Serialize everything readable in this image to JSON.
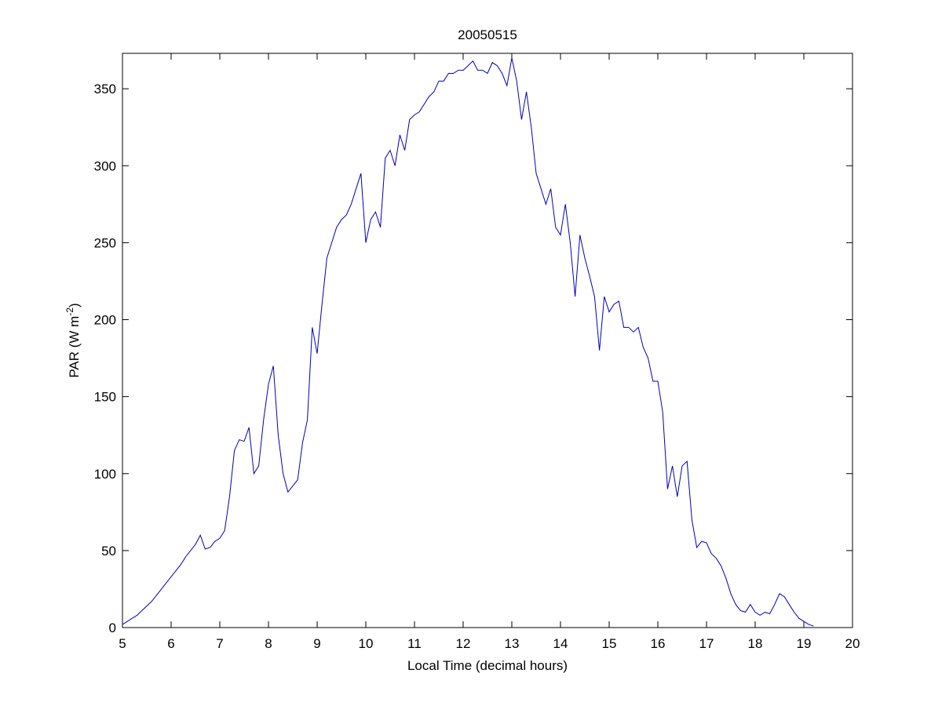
{
  "chart_data": {
    "type": "line",
    "title": "20050515",
    "xlabel": "Local Time (decimal hours)",
    "ylabel": [
      "PAR (W m",
      "-2",
      ")"
    ],
    "color": "#0000bb",
    "xlim": [
      5,
      20
    ],
    "xticks": [
      5,
      6,
      7,
      8,
      9,
      10,
      11,
      12,
      13,
      14,
      15,
      16,
      17,
      18,
      19,
      20
    ],
    "ylim": [
      0,
      373
    ],
    "yticks": [
      0,
      50,
      100,
      150,
      200,
      250,
      300,
      350
    ],
    "x": [
      5,
      5.1,
      5.2,
      5.3,
      5.4,
      5.5,
      5.6,
      5.7,
      5.8,
      5.9,
      6,
      6.1,
      6.2,
      6.3,
      6.4,
      6.5,
      6.6,
      6.7,
      6.8,
      6.9,
      7,
      7.1,
      7.2,
      7.3,
      7.4,
      7.5,
      7.6,
      7.7,
      7.8,
      7.9,
      8,
      8.1,
      8.2,
      8.3,
      8.4,
      8.5,
      8.6,
      8.7,
      8.8,
      8.9,
      9,
      9.1,
      9.2,
      9.3,
      9.4,
      9.5,
      9.6,
      9.7,
      9.8,
      9.9,
      10,
      10.1,
      10.2,
      10.3,
      10.4,
      10.5,
      10.6,
      10.7,
      10.8,
      10.9,
      11,
      11.1,
      11.2,
      11.3,
      11.4,
      11.5,
      11.6,
      11.7,
      11.8,
      11.9,
      12,
      12.1,
      12.2,
      12.3,
      12.4,
      12.5,
      12.6,
      12.7,
      12.8,
      12.9,
      13,
      13.1,
      13.2,
      13.3,
      13.4,
      13.5,
      13.6,
      13.7,
      13.8,
      13.9,
      14,
      14.1,
      14.2,
      14.3,
      14.4,
      14.5,
      14.6,
      14.7,
      14.8,
      14.9,
      15,
      15.1,
      15.2,
      15.3,
      15.4,
      15.5,
      15.6,
      15.7,
      15.8,
      15.9,
      16,
      16.1,
      16.2,
      16.3,
      16.4,
      16.5,
      16.6,
      16.7,
      16.8,
      16.9,
      17,
      17.1,
      17.2,
      17.3,
      17.4,
      17.5,
      17.6,
      17.7,
      17.8,
      17.9,
      18,
      18.1,
      18.2,
      18.3,
      18.4,
      18.5,
      18.6,
      18.7,
      18.8,
      18.9,
      19,
      19.1,
      19.2
    ],
    "values": [
      2,
      4,
      6,
      8,
      11,
      14,
      17,
      21,
      25,
      29,
      33,
      37,
      41,
      46,
      50,
      54,
      60,
      51,
      52,
      56,
      58,
      63,
      85,
      115,
      122,
      121,
      130,
      100,
      105,
      135,
      158,
      170,
      125,
      100,
      88,
      92,
      96,
      120,
      135,
      195,
      178,
      210,
      240,
      250,
      260,
      265,
      268,
      275,
      285,
      295,
      250,
      265,
      270,
      260,
      305,
      310,
      300,
      320,
      310,
      330,
      333,
      335,
      340,
      345,
      348,
      355,
      355,
      360,
      360,
      362,
      362,
      365,
      368,
      362,
      362,
      360,
      367,
      365,
      360,
      352,
      370,
      355,
      330,
      348,
      325,
      295,
      285,
      275,
      285,
      260,
      255,
      275,
      250,
      215,
      255,
      240,
      228,
      215,
      180,
      215,
      205,
      210,
      212,
      195,
      195,
      192,
      195,
      182,
      175,
      160,
      160,
      140,
      90,
      105,
      85,
      105,
      108,
      70,
      52,
      56,
      55,
      48,
      45,
      40,
      32,
      22,
      15,
      11,
      10,
      15,
      10,
      8,
      10,
      9,
      15,
      22,
      20,
      15,
      10,
      6,
      4,
      2,
      1
    ]
  }
}
